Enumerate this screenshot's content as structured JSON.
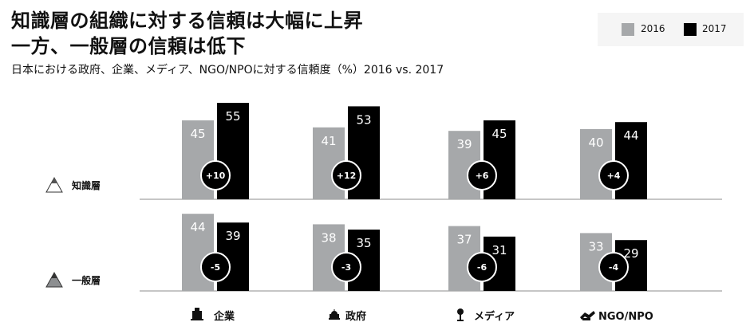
{
  "title_lines": [
    "知識層の組織に対する信頼は大幅に上昇",
    "一方、一般層の信頼は低下"
  ],
  "subtitle": "日本における政府、企業、メディア、NGO/NPOに対する信頼度（%）2016  vs. 2017",
  "colors": {
    "y2016": "#a6a8aa",
    "y2017": "#000000",
    "axis": "#b3b3b3"
  },
  "chart_data": {
    "type": "bar",
    "categories": [
      "企業",
      "政府",
      "メディア",
      "NGO/NPO"
    ],
    "category_icons": [
      "building-icon",
      "capitol-icon",
      "microphone-icon",
      "hands-icon"
    ],
    "legend": [
      "2016",
      "2017"
    ],
    "groups": [
      {
        "name": "知識層",
        "y2016": [
          45,
          41,
          39,
          40
        ],
        "y2017": [
          55,
          53,
          45,
          44
        ],
        "change": [
          "+10",
          "+12",
          "+6",
          "+4"
        ]
      },
      {
        "name": "一般層",
        "y2016": [
          44,
          38,
          37,
          33
        ],
        "y2017": [
          39,
          35,
          31,
          29
        ],
        "change": [
          "-5",
          "-3",
          "-6",
          "-4"
        ]
      }
    ]
  }
}
